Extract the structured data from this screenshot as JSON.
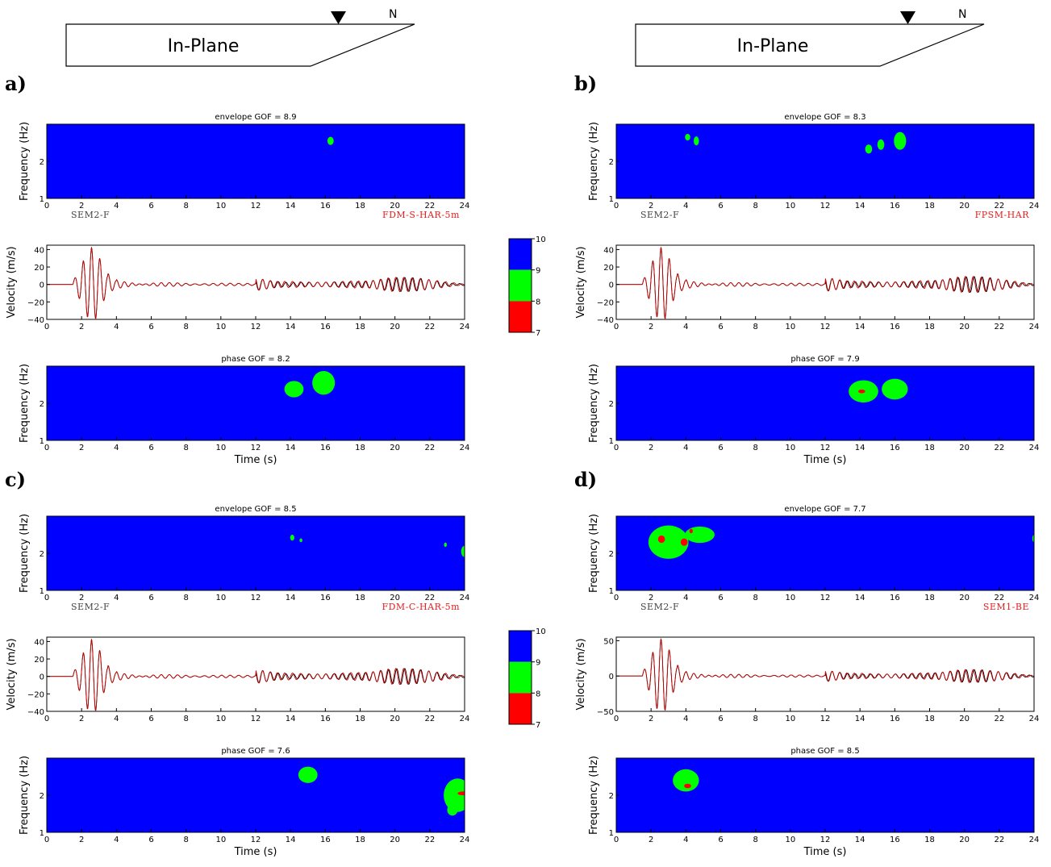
{
  "banner": {
    "text": "In-Plane",
    "north": "N"
  },
  "colors": {
    "blue": "#0000ff",
    "green": "#00ff00",
    "red": "#ff0000",
    "ref_trace": "#000000",
    "cmp_trace": "#cc0000"
  },
  "colorbar_ticks": [
    "10",
    "9",
    "8",
    "7"
  ],
  "reference_label": "SEM2-F",
  "labels": {
    "frequency": "Frequency (Hz)",
    "velocity": "Velocity (m/s)",
    "time": "Time (s)"
  },
  "chart_data": [
    {
      "type": "heatmap",
      "panel": "a)",
      "comparison_label": "FDM-S-HAR-5m",
      "x_range": [
        0,
        24
      ],
      "x_ticks": [
        "0",
        "2",
        "4",
        "6",
        "8",
        "10",
        "12",
        "14",
        "16",
        "18",
        "20",
        "22",
        "24"
      ],
      "freq_range": [
        1,
        3
      ],
      "freq_ticks": [
        "1",
        "2"
      ],
      "envelope": {
        "title": "envelope GOF = 8.9",
        "blobs": [
          {
            "t": 16.3,
            "f": 2.55,
            "rt": 0.18,
            "rf": 0.11,
            "c": "green"
          }
        ]
      },
      "velocity": {
        "ylim": [
          -40,
          45
        ],
        "yticks": [
          "40",
          "20",
          "0",
          "−20",
          "−40"
        ],
        "ytick_values": [
          40,
          20,
          0,
          -20,
          -40
        ],
        "amp": 42,
        "late": 7
      },
      "phase": {
        "title": "phase GOF = 8.2",
        "blobs": [
          {
            "t": 14.2,
            "f": 2.38,
            "rt": 0.55,
            "rf": 0.22,
            "c": "green"
          },
          {
            "t": 15.9,
            "f": 2.55,
            "rt": 0.65,
            "rf": 0.32,
            "c": "green"
          }
        ]
      }
    },
    {
      "type": "heatmap",
      "panel": "b)",
      "comparison_label": "FPSM-HAR",
      "x_range": [
        0,
        24
      ],
      "x_ticks": [
        "0",
        "2",
        "4",
        "6",
        "8",
        "10",
        "12",
        "14",
        "16",
        "18",
        "20",
        "22",
        "24"
      ],
      "freq_range": [
        1,
        3
      ],
      "freq_ticks": [
        "1",
        "2"
      ],
      "envelope": {
        "title": "envelope GOF = 8.3",
        "blobs": [
          {
            "t": 4.1,
            "f": 2.65,
            "rt": 0.15,
            "rf": 0.09,
            "c": "green"
          },
          {
            "t": 4.6,
            "f": 2.55,
            "rt": 0.15,
            "rf": 0.12,
            "c": "green"
          },
          {
            "t": 14.5,
            "f": 2.33,
            "rt": 0.2,
            "rf": 0.12,
            "c": "green"
          },
          {
            "t": 15.2,
            "f": 2.45,
            "rt": 0.2,
            "rf": 0.14,
            "c": "green"
          },
          {
            "t": 16.3,
            "f": 2.55,
            "rt": 0.35,
            "rf": 0.24,
            "c": "green"
          }
        ]
      },
      "velocity": {
        "ylim": [
          -40,
          45
        ],
        "yticks": [
          "40",
          "20",
          "0",
          "−20",
          "−40"
        ],
        "ytick_values": [
          40,
          20,
          0,
          -20,
          -40
        ],
        "amp": 42,
        "late": 8
      },
      "phase": {
        "title": "phase GOF = 7.9",
        "blobs": [
          {
            "t": 14.2,
            "f": 2.32,
            "rt": 0.85,
            "rf": 0.3,
            "c": "green"
          },
          {
            "t": 14.1,
            "f": 2.32,
            "rt": 0.2,
            "rf": 0.05,
            "c": "red"
          },
          {
            "t": 16.0,
            "f": 2.38,
            "rt": 0.75,
            "rf": 0.28,
            "c": "green"
          }
        ]
      }
    },
    {
      "type": "heatmap",
      "panel": "c)",
      "comparison_label": "FDM-C-HAR-5m",
      "x_range": [
        0,
        24
      ],
      "x_ticks": [
        "0",
        "2",
        "4",
        "6",
        "8",
        "10",
        "12",
        "14",
        "16",
        "18",
        "20",
        "22",
        "24"
      ],
      "freq_range": [
        1,
        3
      ],
      "freq_ticks": [
        "1",
        "2"
      ],
      "envelope": {
        "title": "envelope GOF = 8.5",
        "blobs": [
          {
            "t": 14.1,
            "f": 2.42,
            "rt": 0.12,
            "rf": 0.08,
            "c": "green"
          },
          {
            "t": 14.6,
            "f": 2.35,
            "rt": 0.08,
            "rf": 0.05,
            "c": "green"
          },
          {
            "t": 22.9,
            "f": 2.23,
            "rt": 0.08,
            "rf": 0.06,
            "c": "green"
          },
          {
            "t": 24.0,
            "f": 2.05,
            "rt": 0.2,
            "rf": 0.15,
            "c": "green"
          }
        ]
      },
      "velocity": {
        "ylim": [
          -40,
          45
        ],
        "yticks": [
          "40",
          "20",
          "0",
          "−20",
          "−40"
        ],
        "ytick_values": [
          40,
          20,
          0,
          -20,
          -40
        ],
        "amp": 42,
        "late": 8
      },
      "phase": {
        "title": "phase GOF = 7.6",
        "blobs": [
          {
            "t": 15.0,
            "f": 2.55,
            "rt": 0.55,
            "rf": 0.22,
            "c": "green"
          },
          {
            "t": 23.6,
            "f": 2.0,
            "rt": 0.8,
            "rf": 0.45,
            "c": "green"
          },
          {
            "t": 23.3,
            "f": 1.6,
            "rt": 0.3,
            "rf": 0.15,
            "c": "green"
          },
          {
            "t": 23.9,
            "f": 2.05,
            "rt": 0.3,
            "rf": 0.05,
            "c": "red"
          }
        ]
      }
    },
    {
      "type": "heatmap",
      "panel": "d)",
      "comparison_label": "SEM1-BE",
      "x_range": [
        0,
        24
      ],
      "x_ticks": [
        "0",
        "2",
        "4",
        "6",
        "8",
        "10",
        "12",
        "14",
        "16",
        "18",
        "20",
        "22",
        "24"
      ],
      "freq_range": [
        1,
        3
      ],
      "freq_ticks": [
        "1",
        "2"
      ],
      "envelope": {
        "title": "envelope GOF = 7.7",
        "blobs": [
          {
            "t": 3.0,
            "f": 2.3,
            "rt": 1.15,
            "rf": 0.45,
            "c": "green"
          },
          {
            "t": 4.8,
            "f": 2.5,
            "rt": 0.85,
            "rf": 0.22,
            "c": "green"
          },
          {
            "t": 2.6,
            "f": 2.38,
            "rt": 0.2,
            "rf": 0.1,
            "c": "red"
          },
          {
            "t": 3.9,
            "f": 2.3,
            "rt": 0.2,
            "rf": 0.1,
            "c": "red"
          },
          {
            "t": 4.3,
            "f": 2.6,
            "rt": 0.1,
            "rf": 0.06,
            "c": "red"
          },
          {
            "t": 24.0,
            "f": 2.4,
            "rt": 0.1,
            "rf": 0.1,
            "c": "green"
          }
        ]
      },
      "velocity": {
        "ylim": [
          -50,
          55
        ],
        "yticks": [
          "50",
          "0",
          "−50"
        ],
        "ytick_values": [
          50,
          0,
          -50
        ],
        "amp": 52,
        "late": 8
      },
      "phase": {
        "title": "phase GOF = 8.5",
        "blobs": [
          {
            "t": 4.0,
            "f": 2.4,
            "rt": 0.75,
            "rf": 0.3,
            "c": "green"
          },
          {
            "t": 4.1,
            "f": 2.25,
            "rt": 0.2,
            "rf": 0.06,
            "c": "red"
          }
        ]
      }
    }
  ]
}
